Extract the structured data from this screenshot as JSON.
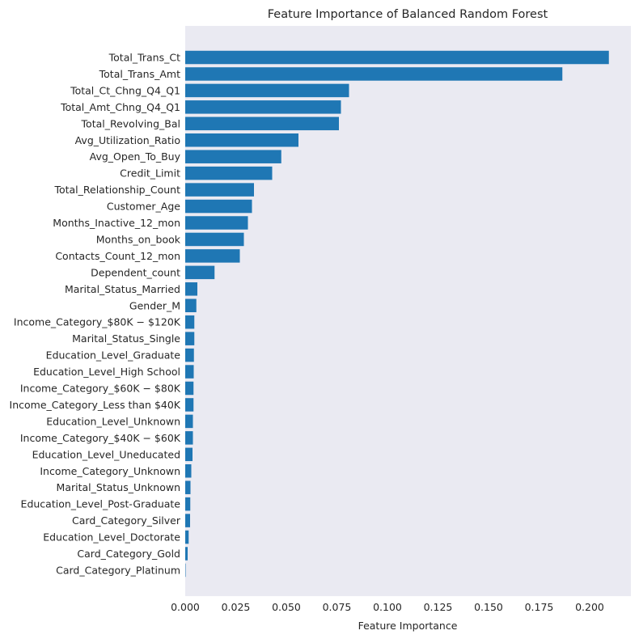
{
  "chart_data": {
    "type": "bar",
    "orientation": "horizontal",
    "title": "Feature Importance of Balanced Random Forest",
    "xlabel": "Feature Importance",
    "ylabel": "",
    "xlim": [
      0,
      0.21
    ],
    "xticks": [
      0.0,
      0.025,
      0.05,
      0.075,
      0.1,
      0.125,
      0.15,
      0.175,
      0.2
    ],
    "xtick_labels": [
      "0.000",
      "0.025",
      "0.050",
      "0.075",
      "0.100",
      "0.125",
      "0.150",
      "0.175",
      "0.200"
    ],
    "grid": false,
    "bar_color": "#1f77b4",
    "plot_background": "#eaeaf2",
    "categories": [
      "Total_Trans_Ct",
      "Total_Trans_Amt",
      "Total_Ct_Chng_Q4_Q1",
      "Total_Amt_Chng_Q4_Q1",
      "Total_Revolving_Bal",
      "Avg_Utilization_Ratio",
      "Avg_Open_To_Buy",
      "Credit_Limit",
      "Total_Relationship_Count",
      "Customer_Age",
      "Months_Inactive_12_mon",
      "Months_on_book",
      "Contacts_Count_12_mon",
      "Dependent_count",
      "Marital_Status_Married",
      "Gender_M",
      "Income_Category_$80K − $120K",
      "Marital_Status_Single",
      "Education_Level_Graduate",
      "Education_Level_High School",
      "Income_Category_$60K − $80K",
      "Income_Category_Less than $40K",
      "Education_Level_Unknown",
      "Income_Category_$40K − $60K",
      "Education_Level_Uneducated",
      "Income_Category_Unknown",
      "Marital_Status_Unknown",
      "Education_Level_Post-Graduate",
      "Card_Category_Silver",
      "Education_Level_Doctorate",
      "Card_Category_Gold",
      "Card_Category_Platinum"
    ],
    "values": [
      0.2095,
      0.1865,
      0.081,
      0.077,
      0.076,
      0.056,
      0.0475,
      0.043,
      0.034,
      0.033,
      0.031,
      0.029,
      0.027,
      0.0145,
      0.006,
      0.0055,
      0.0045,
      0.0045,
      0.0043,
      0.0042,
      0.0041,
      0.0041,
      0.0038,
      0.0038,
      0.0036,
      0.003,
      0.0026,
      0.0025,
      0.0024,
      0.0017,
      0.0012,
      0.0002
    ]
  }
}
